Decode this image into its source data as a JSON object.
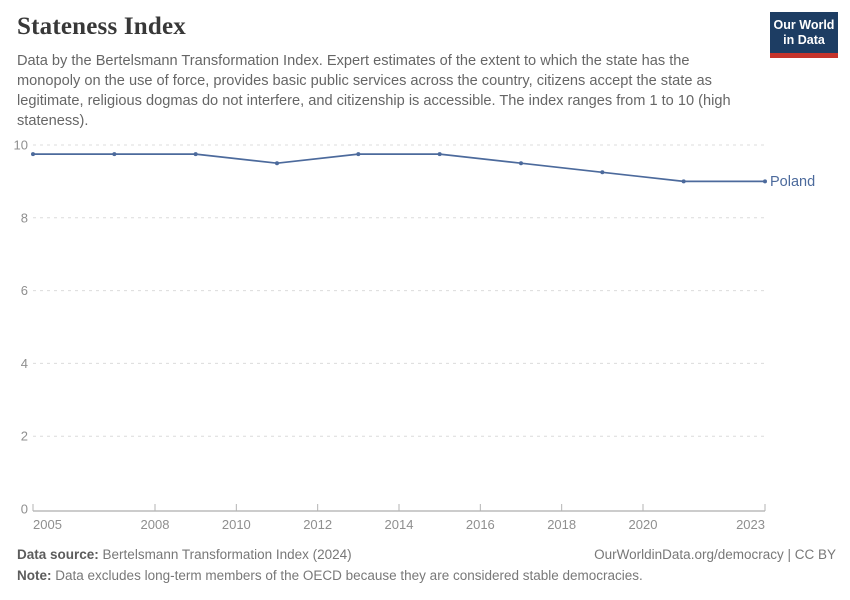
{
  "header": {
    "title": "Stateness Index",
    "subtitle_lines": [
      "Data by the Bertelsmann Transformation Index. Expert estimates of the extent to which the state has the",
      "monopoly on the use of force, provides basic public services across the country, citizens accept the state as",
      "legitimate, religious dogmas do not interfere, and citizenship is accessible. The index ranges from 1 to 10 (high",
      "stateness)."
    ]
  },
  "logo": {
    "line1": "Our World",
    "line2": "in Data"
  },
  "chart_data": {
    "type": "line",
    "title": "Stateness Index",
    "x": [
      2005,
      2007,
      2009,
      2011,
      2013,
      2015,
      2017,
      2019,
      2021,
      2023
    ],
    "series": [
      {
        "name": "Poland",
        "values": [
          9.75,
          9.75,
          9.75,
          9.5,
          9.75,
          9.75,
          9.5,
          9.25,
          9.0,
          9.0
        ],
        "color": "#4c6a9c"
      }
    ],
    "xlabel": "",
    "ylabel": "",
    "xlim": [
      2005,
      2023
    ],
    "ylim": [
      0,
      10
    ],
    "xticks": [
      2005,
      2008,
      2010,
      2012,
      2014,
      2016,
      2018,
      2020,
      2023
    ],
    "yticks": [
      0,
      2,
      4,
      6,
      8,
      10
    ],
    "grid": "horizontal-dashed",
    "legend_position": "end-of-line-label"
  },
  "footer": {
    "source_label": "Data source:",
    "source_text": "Bertelsmann Transformation Index (2024)",
    "rights": "OurWorldinData.org/democracy | CC BY",
    "note_label": "Note:",
    "note_text": "Data excludes long-term members of the OECD because they are considered stable democracies."
  },
  "colors": {
    "series_blue": "#4c6a9c",
    "logo_navy": "#1d3d63",
    "logo_red": "#c5332b",
    "gridline": "#dcdcdc",
    "axis_text": "#8f8f8f"
  }
}
